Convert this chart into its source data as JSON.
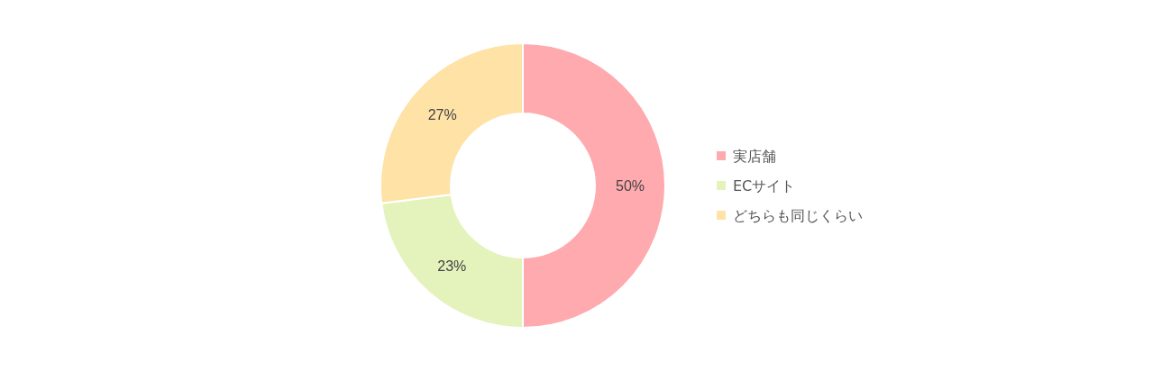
{
  "chart_data": {
    "type": "donut",
    "categories": [
      "実店舗",
      "ECサイト",
      "どちらも同じくらい"
    ],
    "values": [
      50,
      23,
      27
    ],
    "value_labels": [
      "50%",
      "23%",
      "27%"
    ],
    "colors": [
      "#ffaaae",
      "#e4f2bc",
      "#fee2a6"
    ],
    "legend": "right"
  }
}
